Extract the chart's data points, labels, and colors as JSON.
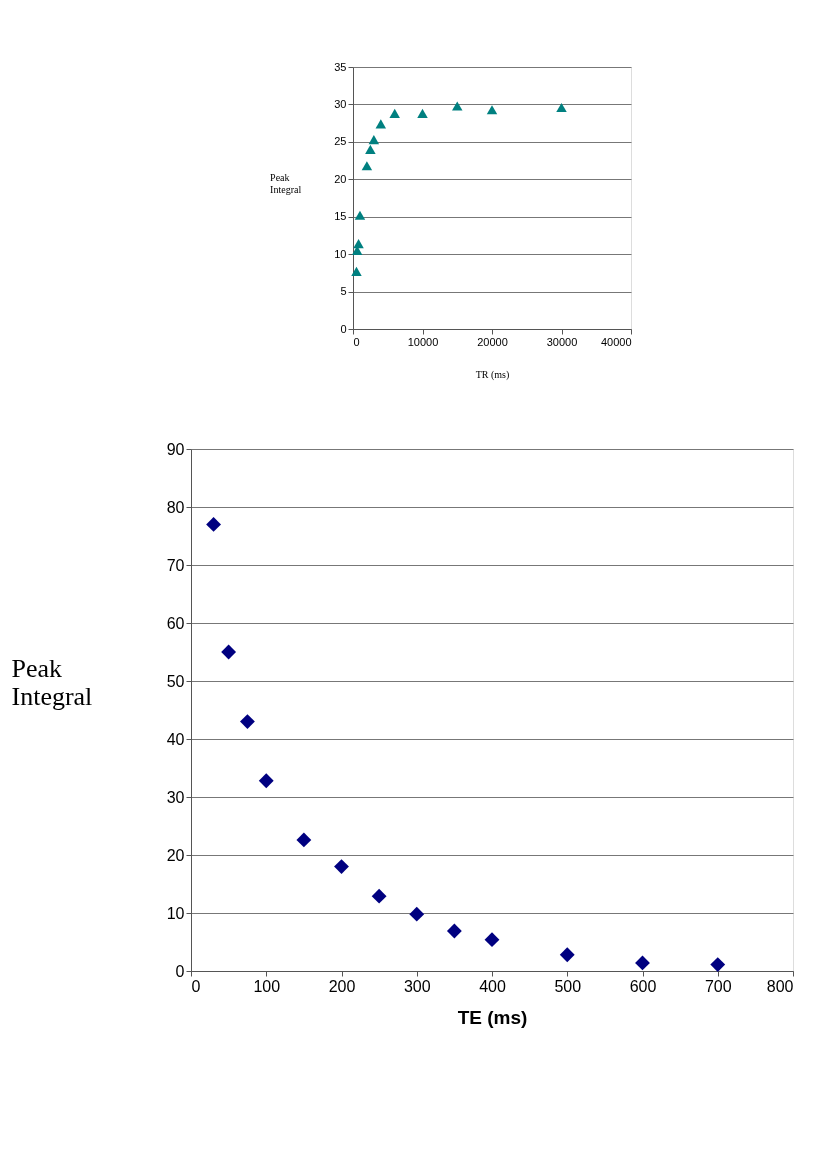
{
  "chart_data": [
    {
      "type": "scatter",
      "xlabel": "TR (ms)",
      "ylabel": "Peak Integral",
      "marker": "triangle",
      "grid": "y",
      "series": [
        {
          "color": "#008080",
          "x": [
            500,
            600,
            800,
            1000,
            2000,
            2500,
            3000,
            4000,
            6000,
            10000,
            15000,
            20000,
            30000
          ],
          "values": [
            7.7,
            10.5,
            11.4,
            15.2,
            21.8,
            24,
            25.3,
            27.4,
            28.8,
            28.8,
            29.8,
            29.3,
            29.6
          ]
        }
      ],
      "xlim": [
        0,
        40000
      ],
      "xticks": [
        0,
        10000,
        20000,
        30000,
        40000
      ],
      "ylim": [
        0,
        35
      ],
      "yticks": [
        0,
        5,
        10,
        15,
        20,
        25,
        30,
        35
      ]
    },
    {
      "type": "scatter",
      "xlabel": "TE (ms)",
      "ylabel": "Peak Integral",
      "marker": "diamond",
      "grid": "y",
      "series": [
        {
          "color": "#000080",
          "x": [
            30,
            50,
            75,
            100,
            150,
            200,
            250,
            300,
            350,
            400,
            500,
            600,
            700
          ],
          "values": [
            77,
            55,
            43,
            32.8,
            22.6,
            18,
            12.9,
            9.8,
            6.9,
            5.4,
            2.8,
            1.4,
            1.1
          ]
        }
      ],
      "xlim": [
        0,
        800
      ],
      "xticks": [
        0,
        100,
        200,
        300,
        400,
        500,
        600,
        700,
        800
      ],
      "ylim": [
        0,
        90
      ],
      "yticks": [
        0,
        10,
        20,
        30,
        40,
        50,
        60,
        70,
        80,
        90
      ]
    }
  ]
}
